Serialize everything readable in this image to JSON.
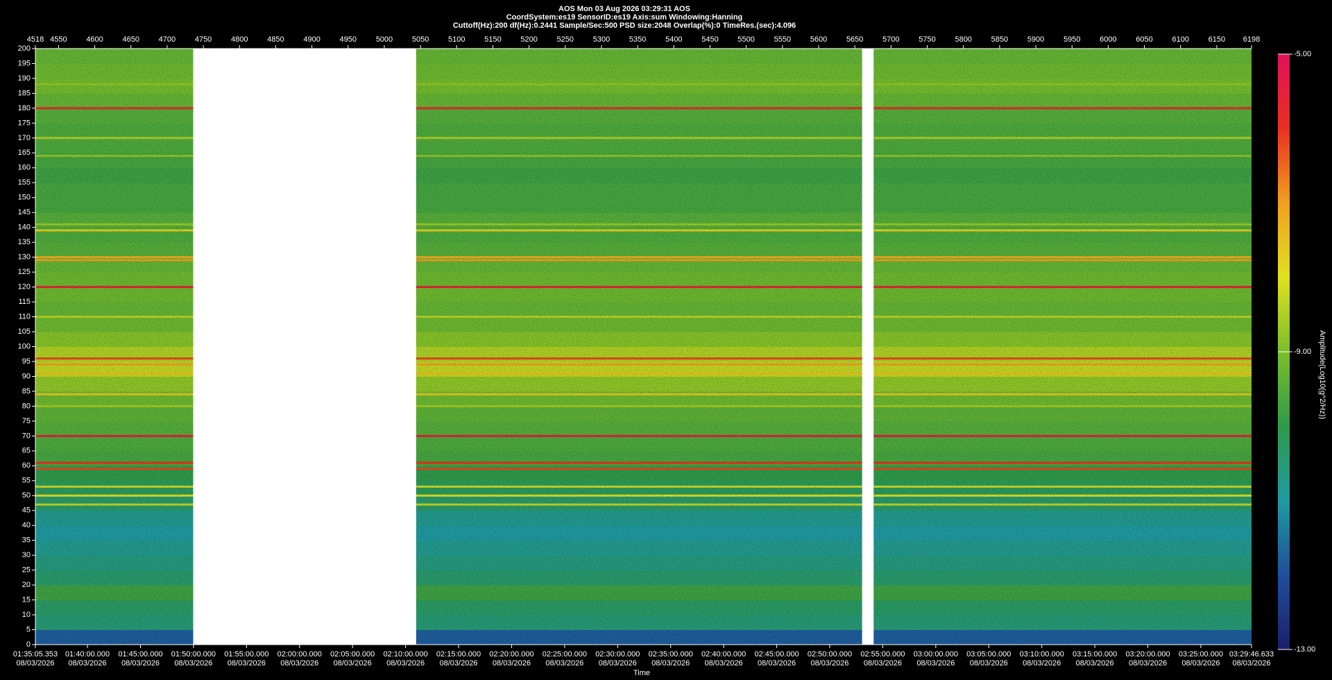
{
  "chart_data": {
    "type": "spectrogram",
    "title": "AOS  Mon 03 Aug 2026 03:29:31  AOS",
    "subtitle": "CoordSystem:es19   SensorID:es19   Axis:sum   Windowing:Hanning",
    "params": "Cuttoff(Hz):200    df(Hz):0.2441    Sample/Sec:500    PSD size:2048    Overlap(%):0    TimeRes.(sec):4.096",
    "x2label": "Time",
    "colorbar_label": "Amplitude(Log10(g^2/Hz))",
    "xlim": [
      4518,
      6198
    ],
    "xticks": [
      4518,
      4550,
      4600,
      4650,
      4700,
      4750,
      4800,
      4850,
      4900,
      4950,
      5000,
      5050,
      5100,
      5150,
      5200,
      5250,
      5300,
      5350,
      5400,
      5450,
      5500,
      5550,
      5600,
      5650,
      5700,
      5750,
      5800,
      5850,
      5900,
      5950,
      6000,
      6050,
      6100,
      6150,
      6198
    ],
    "ylim": [
      0,
      200
    ],
    "yticks": [
      0,
      5,
      10,
      15,
      20,
      25,
      30,
      35,
      40,
      45,
      50,
      55,
      60,
      65,
      70,
      75,
      80,
      85,
      90,
      95,
      100,
      105,
      110,
      115,
      120,
      125,
      130,
      135,
      140,
      145,
      150,
      155,
      160,
      165,
      170,
      175,
      180,
      185,
      190,
      195,
      200
    ],
    "x2lim": [
      5705.353,
      12586.633
    ],
    "x2ticks": [
      {
        "value": 5705.353,
        "label": "01:35:05.353",
        "date": "08/03/2026"
      },
      {
        "value": 6000,
        "label": "01:40:00.000",
        "date": "08/03/2026"
      },
      {
        "value": 6300,
        "label": "01:45:00.000",
        "date": "08/03/2026"
      },
      {
        "value": 6600,
        "label": "01:50:00.000",
        "date": "08/03/2026"
      },
      {
        "value": 6900,
        "label": "01:55:00.000",
        "date": "08/03/2026"
      },
      {
        "value": 7200,
        "label": "02:00:00.000",
        "date": "08/03/2026"
      },
      {
        "value": 7500,
        "label": "02:05:00.000",
        "date": "08/03/2026"
      },
      {
        "value": 7800,
        "label": "02:10:00.000",
        "date": "08/03/2026"
      },
      {
        "value": 8100,
        "label": "02:15:00.000",
        "date": "08/03/2026"
      },
      {
        "value": 8400,
        "label": "02:20:00.000",
        "date": "08/03/2026"
      },
      {
        "value": 8700,
        "label": "02:25:00.000",
        "date": "08/03/2026"
      },
      {
        "value": 9000,
        "label": "02:30:00.000",
        "date": "08/03/2026"
      },
      {
        "value": 9300,
        "label": "02:35:00.000",
        "date": "08/03/2026"
      },
      {
        "value": 9600,
        "label": "02:40:00.000",
        "date": "08/03/2026"
      },
      {
        "value": 9900,
        "label": "02:45:00.000",
        "date": "08/03/2026"
      },
      {
        "value": 10200,
        "label": "02:50:00.000",
        "date": "08/03/2026"
      },
      {
        "value": 10500,
        "label": "02:55:00.000",
        "date": "08/03/2026"
      },
      {
        "value": 10800,
        "label": "03:00:00.000",
        "date": "08/03/2026"
      },
      {
        "value": 11100,
        "label": "03:05:00.000",
        "date": "08/03/2026"
      },
      {
        "value": 11400,
        "label": "03:10:00.000",
        "date": "08/03/2026"
      },
      {
        "value": 11700,
        "label": "03:15:00.000",
        "date": "08/03/2026"
      },
      {
        "value": 12000,
        "label": "03:20:00.000",
        "date": "08/03/2026"
      },
      {
        "value": 12300,
        "label": "03:25:00.000",
        "date": "08/03/2026"
      },
      {
        "value": 12586.633,
        "label": "03:29:46.633",
        "date": "08/03/2026"
      }
    ],
    "clim": [
      -13,
      -5
    ],
    "cticks": [
      {
        "value": -13,
        "label": "-13.00"
      },
      {
        "value": -9,
        "label": "-9.00"
      },
      {
        "value": -5,
        "label": "-5.00"
      }
    ],
    "colormap": [
      "#1b1f6b",
      "#1f4e9c",
      "#1f9aa0",
      "#2f9a4a",
      "#7bbf2a",
      "#e0e020",
      "#f0a020",
      "#e83020",
      "#e0105a"
    ],
    "segments": [
      [
        4518,
        4736
      ],
      [
        5044,
        5660
      ],
      [
        5676,
        6198
      ]
    ],
    "bands": {
      "freq_edges": [
        0,
        5,
        10,
        15,
        20,
        25,
        30,
        35,
        40,
        45,
        50,
        55,
        60,
        65,
        70,
        75,
        80,
        85,
        90,
        95,
        100,
        105,
        110,
        115,
        120,
        125,
        130,
        135,
        140,
        145,
        150,
        155,
        160,
        165,
        170,
        175,
        180,
        185,
        190,
        195,
        200
      ],
      "values": [
        -11.8,
        -10.5,
        -10.3,
        -9.8,
        -10.4,
        -10.6,
        -10.8,
        -11.0,
        -10.8,
        -10.4,
        -10.2,
        -10.0,
        -9.7,
        -9.6,
        -9.5,
        -9.4,
        -9.2,
        -8.8,
        -8.3,
        -8.5,
        -8.9,
        -9.2,
        -9.3,
        -9.2,
        -9.2,
        -9.3,
        -9.5,
        -9.6,
        -9.5,
        -9.7,
        -9.7,
        -9.8,
        -9.7,
        -9.6,
        -9.6,
        -9.5,
        -9.3,
        -9.1,
        -9.2,
        -9.3
      ]
    },
    "lines": {
      "freqs": [
        188,
        180,
        170,
        164,
        141,
        139,
        130,
        129,
        120,
        110,
        96,
        94,
        91,
        84,
        80,
        70,
        61,
        59,
        53,
        50,
        47
      ],
      "values": [
        -8.8,
        -5.8,
        -8.5,
        -8.8,
        -8.7,
        -7.8,
        -7.2,
        -7.0,
        -5.6,
        -8.4,
        -6.2,
        -7.0,
        -7.5,
        -7.6,
        -8.6,
        -5.5,
        -6.0,
        -6.2,
        -8.2,
        -8.0,
        -8.3
      ]
    }
  }
}
